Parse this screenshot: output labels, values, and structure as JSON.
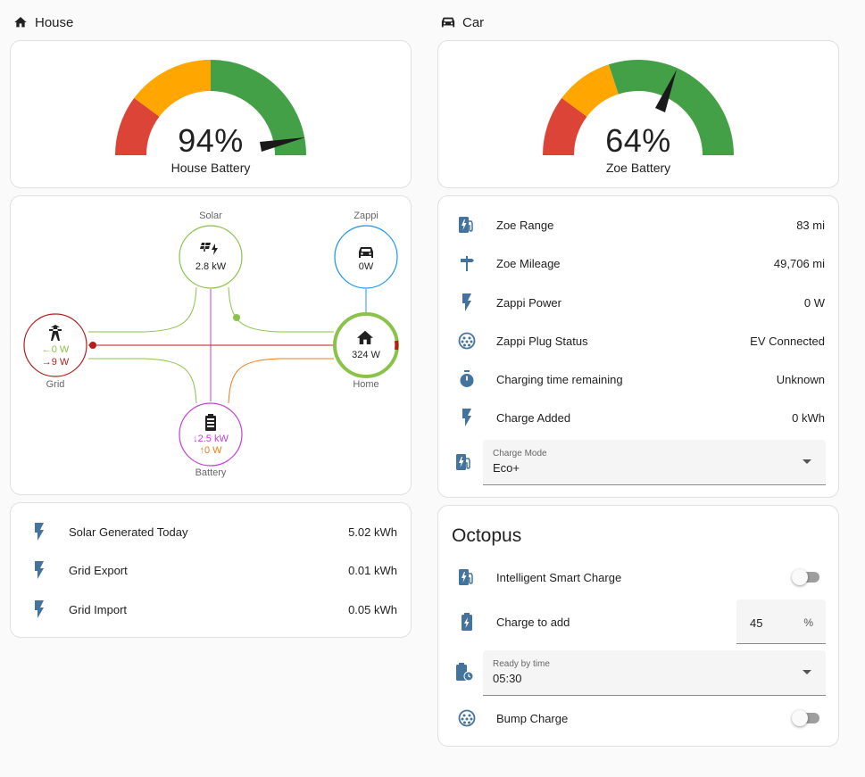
{
  "house": {
    "title": "House",
    "gauge": {
      "value": "94%",
      "level": 0.94,
      "name": "House Battery"
    },
    "flow": {
      "solar": {
        "label": "Solar",
        "value": "2.8 kW"
      },
      "zappi": {
        "label": "Zappi",
        "value": "0W"
      },
      "grid": {
        "label": "Grid",
        "export": "←0 W",
        "import": "→9 W"
      },
      "home": {
        "label": "Home",
        "value": "324 W"
      },
      "battery": {
        "label": "Battery",
        "in": "↓2.5 kW",
        "out": "↑0 W"
      }
    },
    "energy": [
      {
        "label": "Solar Generated Today",
        "value": "5.02 kWh",
        "icon": "flash-icon"
      },
      {
        "label": "Grid Export",
        "value": "0.01 kWh",
        "icon": "flash-icon"
      },
      {
        "label": "Grid Import",
        "value": "0.05 kWh",
        "icon": "flash-icon"
      }
    ]
  },
  "car": {
    "title": "Car",
    "gauge": {
      "value": "64%",
      "level": 0.64,
      "name": "Zoe Battery"
    },
    "entities": [
      {
        "label": "Zoe Range",
        "value": "83 mi",
        "icon": "ev-station-icon"
      },
      {
        "label": "Zoe Mileage",
        "value": "49,706 mi",
        "icon": "signpost-icon"
      },
      {
        "label": "Zappi Power",
        "value": "0 W",
        "icon": "flash-icon"
      },
      {
        "label": "Zappi Plug Status",
        "value": "EV Connected",
        "icon": "ev-plug-icon"
      },
      {
        "label": "Charging time remaining",
        "value": "Unknown",
        "icon": "timer-icon"
      },
      {
        "label": "Charge Added",
        "value": "0 kWh",
        "icon": "flash-icon"
      }
    ],
    "charge_mode": {
      "label": "Charge Mode",
      "value": "Eco+"
    }
  },
  "octopus": {
    "title": "Octopus",
    "smart_charge": {
      "label": "Intelligent Smart Charge",
      "on": false
    },
    "charge_to_add": {
      "label": "Charge to add",
      "value": "45",
      "unit": "%"
    },
    "ready_by": {
      "label": "Ready by time",
      "value": "05:30"
    },
    "bump_charge": {
      "label": "Bump Charge",
      "on": false
    }
  },
  "colors": {
    "red": "#db4437",
    "orange": "#ffa600",
    "green": "#43a047",
    "icon_blue": "#44739e",
    "solar": "#8bc34a",
    "grid_red": "#b71c1c",
    "battery": "#c43fd6",
    "zappi": "#2196f3",
    "home_orange": "#ef7d1a"
  }
}
